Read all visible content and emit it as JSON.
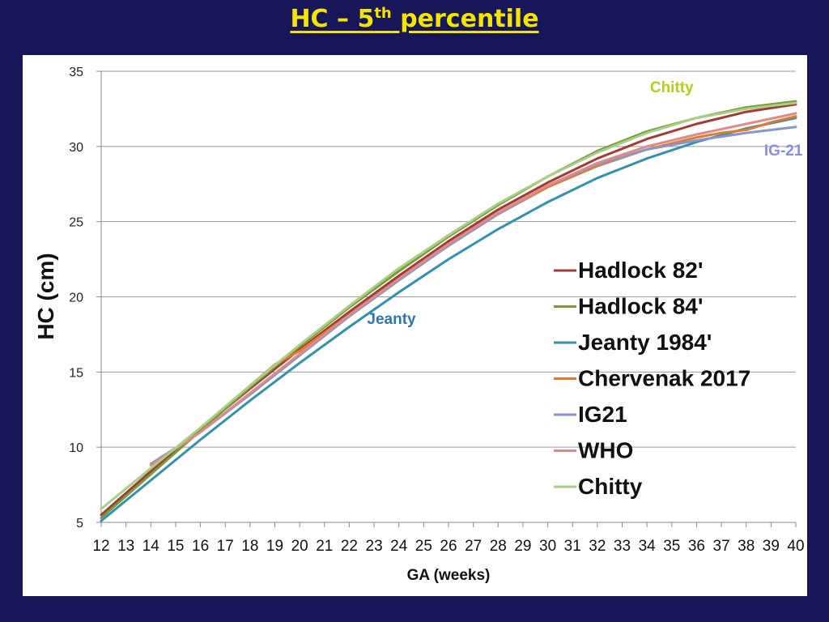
{
  "slide": {
    "title_main": "HC – 5",
    "title_sup": "th",
    "title_rest": " percentile"
  },
  "chart_data": {
    "type": "line",
    "xlabel": "GA (weeks)",
    "ylabel": "HC (cm)",
    "xlim": [
      12,
      40
    ],
    "ylim": [
      5,
      35
    ],
    "x_ticks": [
      12,
      13,
      14,
      15,
      16,
      17,
      18,
      19,
      20,
      21,
      22,
      23,
      24,
      25,
      26,
      27,
      28,
      29,
      30,
      31,
      32,
      33,
      34,
      35,
      36,
      37,
      38,
      39,
      40
    ],
    "y_ticks": [
      5,
      10,
      15,
      20,
      25,
      30,
      35
    ],
    "grid": "horizontal",
    "legend_position": "center-right",
    "series": [
      {
        "name": "Hadlock 82'",
        "color": "#a23b34",
        "x": [
          12,
          14,
          16,
          18,
          20,
          22,
          24,
          26,
          28,
          30,
          32,
          34,
          36,
          38,
          40
        ],
        "y": [
          5.5,
          8.4,
          11.2,
          13.9,
          16.5,
          19.0,
          21.4,
          23.7,
          25.8,
          27.6,
          29.2,
          30.5,
          31.5,
          32.3,
          32.8
        ]
      },
      {
        "name": "Hadlock 84'",
        "color": "#779a3a",
        "x": [
          12,
          14,
          16,
          18,
          20,
          22,
          24,
          26,
          28,
          30,
          32,
          34,
          36,
          38,
          40
        ],
        "y": [
          5.3,
          8.2,
          11.1,
          14.0,
          16.7,
          19.3,
          21.7,
          24.0,
          26.1,
          28.0,
          29.7,
          31.0,
          31.9,
          32.6,
          33.0
        ]
      },
      {
        "name": "Jeanty 1984'",
        "color": "#3391ad",
        "x": [
          12,
          14,
          16,
          18,
          20,
          22,
          24,
          26,
          28,
          30,
          32,
          34,
          36,
          38,
          40
        ],
        "y": [
          5.1,
          7.8,
          10.5,
          13.1,
          15.6,
          18.0,
          20.3,
          22.5,
          24.5,
          26.3,
          27.9,
          29.2,
          30.3,
          31.2,
          31.9
        ]
      },
      {
        "name": "Chervenak 2017",
        "color": "#e07a2e",
        "x": [
          18,
          19,
          20,
          22,
          24,
          26,
          28,
          30,
          32,
          34,
          36,
          37,
          38,
          39,
          40
        ],
        "y": [
          14.1,
          15.5,
          16.4,
          18.8,
          21.2,
          23.4,
          25.5,
          27.3,
          28.7,
          29.8,
          30.6,
          30.9,
          31.1,
          31.6,
          32.0
        ]
      },
      {
        "name": "IG21",
        "color": "#8896c8",
        "x": [
          14,
          16,
          18,
          20,
          22,
          24,
          26,
          28,
          30,
          32,
          34,
          36,
          38,
          40
        ],
        "y": [
          8.9,
          11.0,
          13.5,
          16.1,
          18.7,
          21.1,
          23.4,
          25.5,
          27.4,
          28.8,
          29.8,
          30.4,
          30.9,
          31.3
        ]
      },
      {
        "name": "WHO",
        "color": "#de8a86",
        "x": [
          14,
          16,
          18,
          20,
          22,
          24,
          26,
          28,
          30,
          32,
          34,
          36,
          38,
          40
        ],
        "y": [
          8.8,
          11.0,
          13.6,
          16.2,
          18.8,
          21.2,
          23.5,
          25.6,
          27.4,
          28.9,
          30.0,
          30.8,
          31.5,
          32.2
        ]
      },
      {
        "name": "Chitty",
        "color": "#a9cf87",
        "x": [
          12,
          14,
          16,
          18,
          20,
          22,
          24,
          26,
          28,
          30,
          32,
          34,
          36,
          38,
          40
        ],
        "y": [
          5.9,
          8.6,
          11.3,
          14.1,
          16.8,
          19.4,
          21.9,
          24.1,
          26.2,
          28.0,
          29.6,
          30.9,
          31.9,
          32.5,
          32.9
        ]
      }
    ],
    "annotations": [
      {
        "text": "Chitty",
        "color": "#b6cc1e",
        "x": 35,
        "y": 33.6
      },
      {
        "text": "IG-21",
        "color": "#8a8ee0",
        "x": 39.5,
        "y": 29.4
      },
      {
        "text": "Jeanty",
        "color": "#2e75b6",
        "x": 23.7,
        "y": 18.2
      }
    ]
  }
}
